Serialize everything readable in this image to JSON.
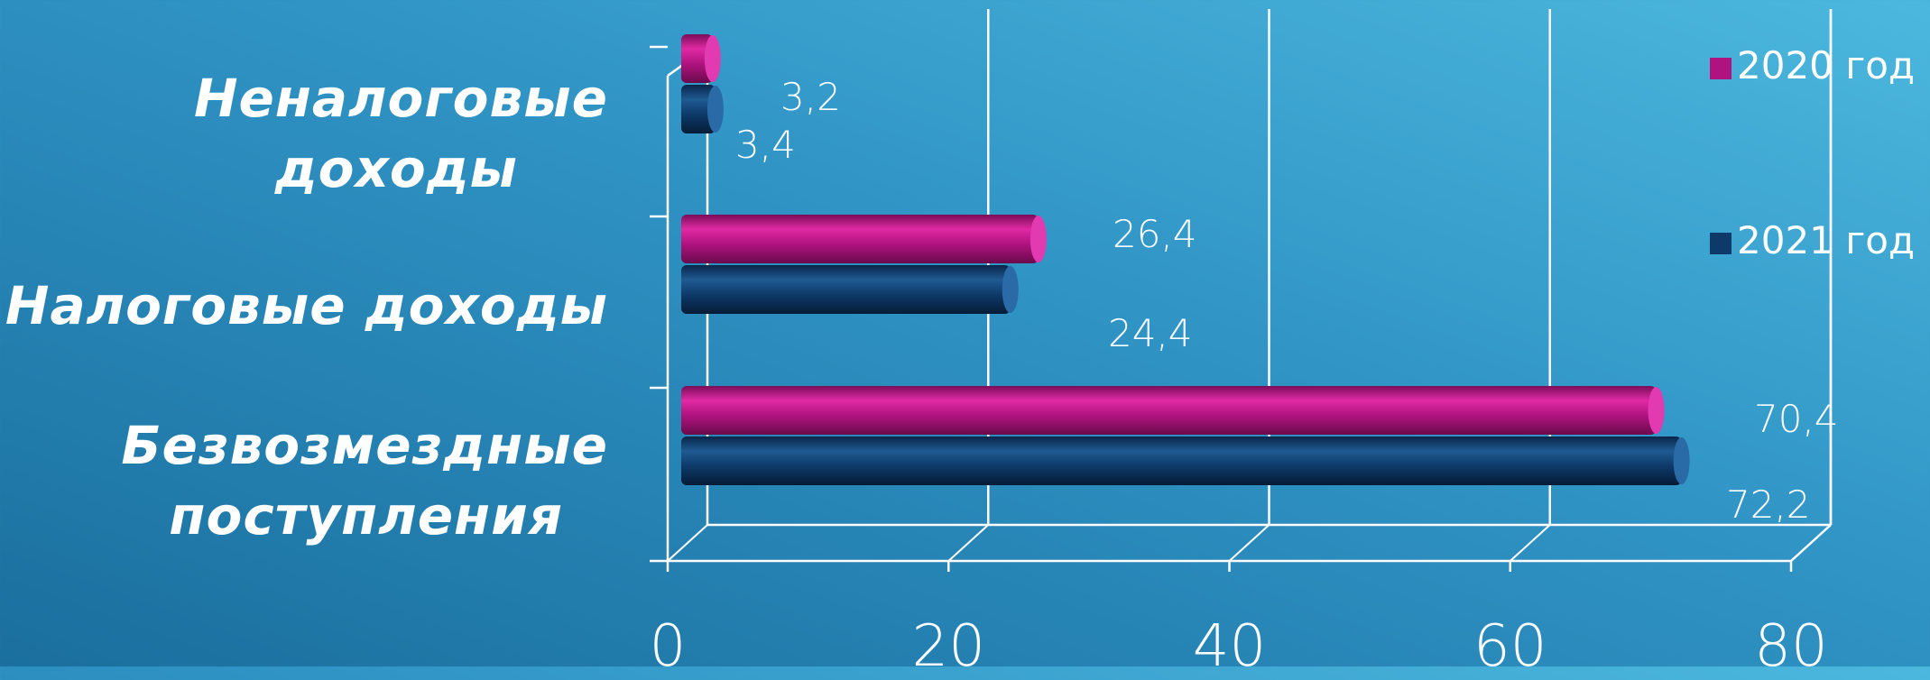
{
  "chart_data": {
    "type": "bar",
    "orientation": "horizontal",
    "categories": [
      "Неналоговые доходы",
      "Налоговые доходы",
      "Безвозмездные поступления"
    ],
    "category_lines": [
      [
        "Неналоговые",
        "доходы"
      ],
      [
        "Налоговые доходы"
      ],
      [
        "Безвозмездные",
        "поступления"
      ]
    ],
    "series": [
      {
        "name": "2020 год",
        "color": "#b0137f",
        "values": [
          3.2,
          26.4,
          70.4
        ],
        "labels": [
          "3,2",
          "26,4",
          "70,4"
        ]
      },
      {
        "name": "2021 год",
        "color": "#0e3a6a",
        "values": [
          3.4,
          24.4,
          72.2
        ],
        "labels": [
          "3,4",
          "24,4",
          "72,2"
        ]
      }
    ],
    "xticks": [
      "0",
      "20",
      "40",
      "60",
      "80"
    ],
    "xlim": [
      0,
      80
    ],
    "grid": true,
    "legend_position": "right"
  }
}
